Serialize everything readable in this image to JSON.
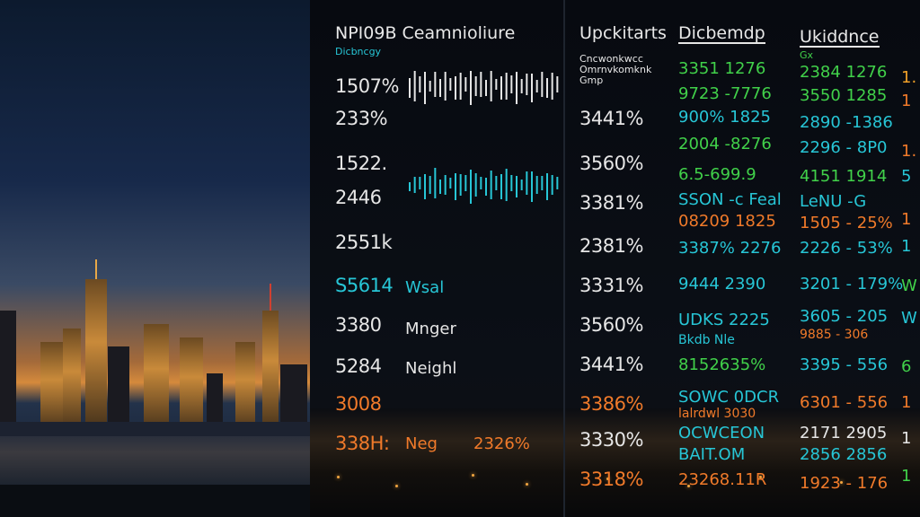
{
  "header": {
    "col1_title": "NPI09B Ceamnioliure",
    "col1_sub": "Dicbncgy",
    "col2_title": "Upckitarts",
    "col2_sub1": "Cncwonkwcc",
    "col2_sub2": "Omrnvkomknk",
    "col2_sub3": "Gmp",
    "col3_title": "Dicbemdp",
    "col4_title": "Ukiddnce",
    "col4_sub": "Gx"
  },
  "col1_values": [
    "1507%",
    "233%",
    "1522.",
    "2446",
    "2551k",
    "S5614",
    "3380",
    "5284",
    "3008",
    "338H:"
  ],
  "col1_labels": [
    "Wsal",
    "Mnger",
    "Neighl",
    "Neg"
  ],
  "col1_extra": "2326%",
  "col2_values": [
    "3441%",
    "3560%",
    "3381%",
    "2381%",
    "3331%",
    "3560%",
    "3441%",
    "3386%",
    "3330%",
    "3318%"
  ],
  "col3_values": [
    "3351 1276",
    "9723 -7776",
    "900% 1825",
    "2004 -8276",
    "6.5-699.9",
    "SSON -c Feal",
    "08209 1825",
    "3387% 2276",
    "9444 2390",
    "UDKS 2225",
    "Bkdb Nle",
    "8152635%",
    "SOWC 0DCR",
    "lalrdwl 3030",
    "OCWCEON",
    "BAIT.OM",
    "23268.11R"
  ],
  "col4_values": [
    "2384 1276",
    "3550 1285",
    "2890 -1386",
    "2296 - 8P0",
    "4151 1914",
    "LeNU -G",
    "1505 - 25%",
    "2226 - 53%",
    "3201 - 179%",
    "3605 - 205",
    "9885 - 306",
    "3395 - 556",
    "6301 - 556",
    "2171 2905",
    "2856 2856",
    "1923 - 176"
  ],
  "col5_values": [
    "1.",
    "1",
    "1.",
    "5",
    "1",
    "1",
    "W",
    "W",
    "6",
    "1",
    "1",
    "1"
  ],
  "sparkline1": [
    22,
    34,
    18,
    36,
    12,
    28,
    20,
    32,
    14,
    26,
    30,
    16,
    38,
    22,
    28,
    18,
    34,
    12,
    26,
    30,
    20,
    36,
    16,
    24,
    32,
    14,
    28,
    22,
    30,
    18
  ],
  "sparkline2": [
    10,
    18,
    14,
    28,
    20,
    34,
    16,
    22,
    12,
    30,
    24,
    18,
    38,
    26,
    14,
    20,
    32,
    16,
    28,
    36,
    18,
    24,
    12,
    26,
    34,
    20,
    16,
    30,
    22,
    14
  ],
  "colors": {
    "white": "#e6e6e6",
    "orange": "#f07a2a",
    "green": "#41d14a",
    "cyan": "#27c6d6"
  }
}
